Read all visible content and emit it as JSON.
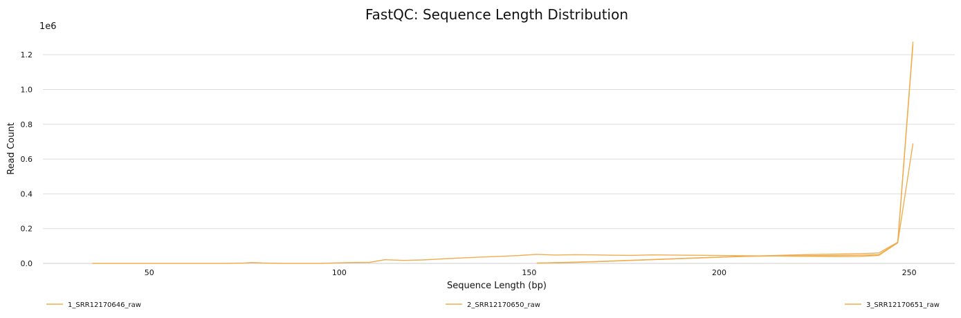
{
  "chart_data": {
    "type": "line",
    "title": "FastQC: Sequence Length Distribution",
    "xlabel": "Sequence Length (bp)",
    "ylabel": "Read Count",
    "y_multiplier_label": "1e6",
    "xlim": [
      22,
      262
    ],
    "ylim": [
      0,
      1.3
    ],
    "x_ticks": [
      50,
      100,
      150,
      200,
      250
    ],
    "x_tick_labels": [
      "50",
      "100",
      "150",
      "200",
      "250"
    ],
    "y_ticks": [
      0.0,
      0.2,
      0.4,
      0.6,
      0.8,
      1.0,
      1.2
    ],
    "y_tick_labels": [
      "0.0",
      "0.2",
      "0.4",
      "0.6",
      "0.8",
      "1.0",
      "1.2"
    ],
    "grid": "horizontal",
    "legend_position": "bottom",
    "line_color": "#f0ad4e",
    "series": [
      {
        "name": "1_SRR12170646_raw",
        "x": [
          152,
          157,
          162,
          167,
          172,
          177,
          182,
          187,
          192,
          197,
          202,
          207,
          212,
          217,
          222,
          227,
          232,
          237,
          242,
          247,
          251
        ],
        "y": [
          0.001,
          0.004,
          0.007,
          0.01,
          0.014,
          0.018,
          0.022,
          0.026,
          0.03,
          0.034,
          0.037,
          0.04,
          0.042,
          0.043,
          0.044,
          0.045,
          0.046,
          0.047,
          0.05,
          0.12,
          0.69
        ]
      },
      {
        "name": "2_SRR12170650_raw",
        "x": [
          35,
          50,
          70,
          75,
          77,
          80,
          85,
          90,
          95,
          100,
          103,
          108,
          112,
          117,
          122,
          127,
          132,
          137,
          142,
          147,
          152,
          157,
          162,
          167,
          172,
          177,
          182,
          187,
          192,
          197,
          202,
          207,
          212,
          217,
          222,
          227,
          232,
          237,
          242,
          247,
          251
        ],
        "y": [
          0,
          0,
          0,
          0.002,
          0.005,
          0.002,
          0,
          0,
          0,
          0.003,
          0.005,
          0.006,
          0.021,
          0.017,
          0.02,
          0.026,
          0.031,
          0.036,
          0.04,
          0.045,
          0.052,
          0.048,
          0.05,
          0.049,
          0.047,
          0.046,
          0.049,
          0.048,
          0.047,
          0.046,
          0.045,
          0.044,
          0.043,
          0.042,
          0.041,
          0.04,
          0.039,
          0.04,
          0.046,
          0.118,
          1.26
        ]
      },
      {
        "name": "3_SRR12170651_raw",
        "x": [
          152,
          157,
          162,
          167,
          172,
          177,
          182,
          187,
          192,
          197,
          202,
          207,
          212,
          217,
          222,
          227,
          232,
          237,
          242,
          247,
          251
        ],
        "y": [
          0.002,
          0.004,
          0.006,
          0.009,
          0.013,
          0.017,
          0.021,
          0.025,
          0.029,
          0.033,
          0.037,
          0.041,
          0.044,
          0.047,
          0.05,
          0.052,
          0.054,
          0.056,
          0.06,
          0.122,
          1.275
        ]
      }
    ]
  }
}
